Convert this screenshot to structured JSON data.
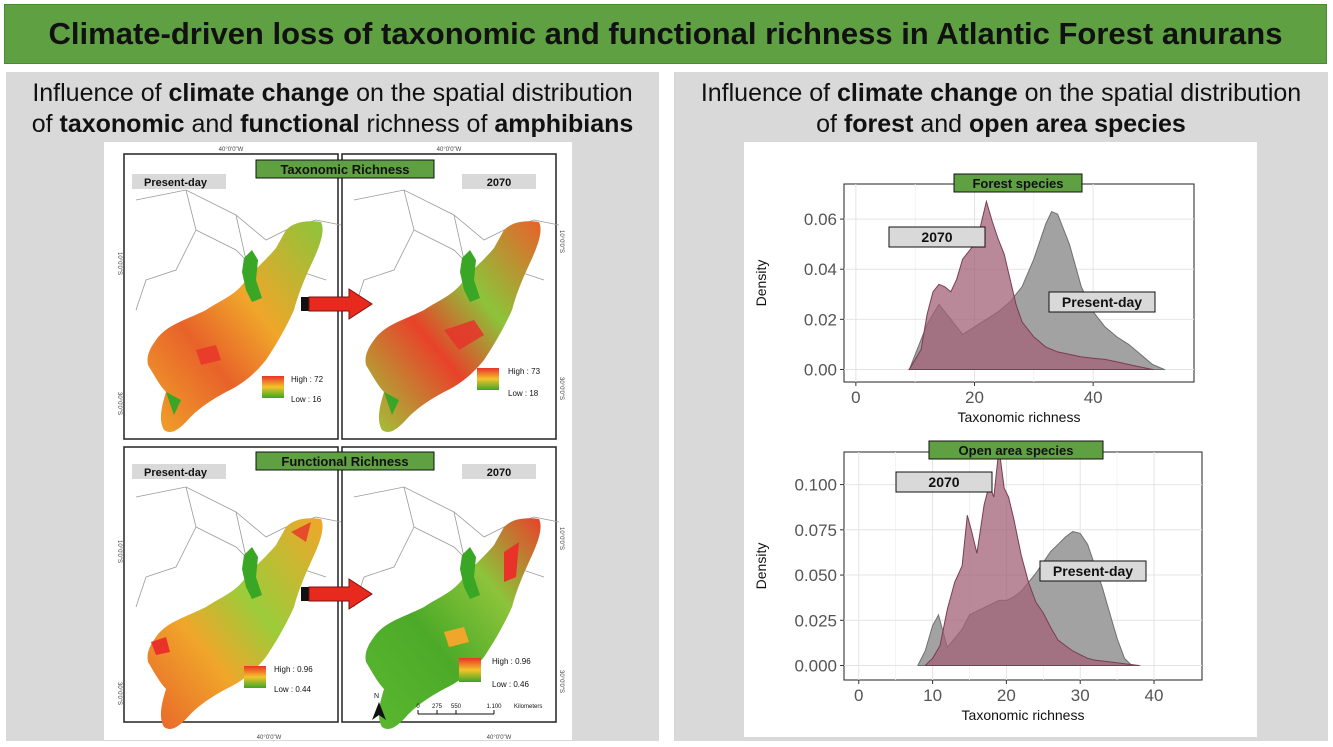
{
  "banner": {
    "title": "Climate-driven loss of taxonomic and functional richness in Atlantic Forest anurans"
  },
  "left_panel": {
    "title_line1": [
      "Influence of ",
      "climate change",
      " on the spatial distribution"
    ],
    "title_line2": [
      "of ",
      "taxonomic",
      " and ",
      "functional",
      " richness of ",
      "amphibians"
    ],
    "maps": {
      "coord_top": "40°0'0\"W",
      "coord_side_10": "10°0'0\"S",
      "coord_side_30": "30°0'0\"S",
      "taxonomic": {
        "label": "Taxonomic Richness",
        "present": {
          "tag": "Present-day",
          "high": "High : 72",
          "low": "Low : 16"
        },
        "future": {
          "tag": "2070",
          "high": "High : 73",
          "low": "Low : 18"
        }
      },
      "functional": {
        "label": "Functional Richness",
        "present": {
          "tag": "Present-day",
          "high": "High : 0.96",
          "low": "Low : 0.44"
        },
        "future": {
          "tag": "2070",
          "high": "High : 0.96",
          "low": "Low : 0.46"
        }
      },
      "north": "N",
      "scale": {
        "ticks": [
          "0",
          "275",
          "550",
          "1.100"
        ],
        "unit": "Kilometers"
      },
      "colors": {
        "high": "#e8322a",
        "mid": "#f0a62a",
        "low": "#3aa626",
        "border": "#9a9a9a"
      }
    }
  },
  "right_panel": {
    "title_line1": [
      "Influence of ",
      "climate change",
      " on the spatial distribution"
    ],
    "title_line2": [
      "of ",
      "forest",
      " and ",
      "open area species"
    ],
    "colors": {
      "present": "#9d9d9d",
      "future": "#a26077",
      "label_green": "#5fa043"
    },
    "chart_data": [
      {
        "type": "area",
        "title": "Forest species",
        "xlabel": "Taxonomic richness",
        "ylabel": "Density",
        "xlim": [
          -2,
          57
        ],
        "ylim": [
          -0.005,
          0.074
        ],
        "xticks": [
          0,
          20,
          40
        ],
        "yticks": [
          0.0,
          0.02,
          0.04,
          0.06
        ],
        "ytick_labels": [
          "0.00",
          "0.02",
          "0.04",
          "0.06"
        ],
        "grid": true,
        "series": [
          {
            "name": "Present-day",
            "x": [
              9,
              12,
              14,
              16,
              18,
              20,
              22,
              24,
              26,
              28,
              30,
              32,
              33,
              34,
              36,
              38,
              40,
              42,
              44,
              46,
              48,
              50,
              52
            ],
            "y": [
              0,
              0.018,
              0.026,
              0.02,
              0.014,
              0.017,
              0.02,
              0.023,
              0.027,
              0.033,
              0.044,
              0.058,
              0.063,
              0.062,
              0.05,
              0.033,
              0.023,
              0.017,
              0.013,
              0.01,
              0.006,
              0.002,
              0
            ]
          },
          {
            "name": "2070",
            "x": [
              9,
              11,
              12,
              13,
              14,
              15,
              16,
              17,
              18,
              19,
              20,
              21,
              22,
              23,
              24,
              25,
              26,
              27,
              28,
              30,
              32,
              34,
              36,
              38,
              40,
              42,
              44,
              46,
              48,
              50
            ],
            "y": [
              0,
              0.008,
              0.022,
              0.031,
              0.034,
              0.033,
              0.031,
              0.036,
              0.044,
              0.047,
              0.05,
              0.057,
              0.067,
              0.059,
              0.052,
              0.046,
              0.036,
              0.026,
              0.019,
              0.013,
              0.009,
              0.007,
              0.006,
              0.005,
              0.0045,
              0.004,
              0.003,
              0.002,
              0.001,
              0
            ]
          }
        ]
      },
      {
        "type": "area",
        "title": "Open area species",
        "xlabel": "Taxonomic richness",
        "ylabel": "Density",
        "xlim": [
          -2,
          46.5
        ],
        "ylim": [
          -0.008,
          0.118
        ],
        "xticks": [
          0,
          10,
          20,
          30,
          40
        ],
        "yticks": [
          0.0,
          0.025,
          0.05,
          0.075,
          0.1
        ],
        "ytick_labels": [
          "0.000",
          "0.025",
          "0.050",
          "0.075",
          "0.100"
        ],
        "grid": true,
        "series": [
          {
            "name": "Present-day",
            "x": [
              8,
              9,
              10,
              10.8,
              12,
              14,
              15,
              16,
              17,
              18,
              19,
              20,
              21,
              22,
              23,
              24,
              25,
              26,
              27,
              28,
              29,
              30,
              31,
              32,
              33,
              34,
              35,
              36,
              37
            ],
            "y": [
              0,
              0.008,
              0.022,
              0.028,
              0.01,
              0.02,
              0.028,
              0.03,
              0.032,
              0.034,
              0.036,
              0.036,
              0.038,
              0.041,
              0.046,
              0.051,
              0.057,
              0.063,
              0.067,
              0.071,
              0.074,
              0.073,
              0.067,
              0.055,
              0.043,
              0.029,
              0.015,
              0.004,
              0
            ]
          },
          {
            "name": "2070",
            "x": [
              9,
              10,
              11,
              12,
              13,
              14,
              14.7,
              15.3,
              16,
              17,
              17.7,
              18.3,
              19,
              19.7,
              20.3,
              21,
              22,
              23,
              24,
              25,
              26,
              27,
              28,
              29,
              30,
              31,
              32,
              34,
              36,
              37,
              38
            ],
            "y": [
              0,
              0.004,
              0.011,
              0.031,
              0.046,
              0.055,
              0.083,
              0.074,
              0.062,
              0.089,
              0.1,
              0.093,
              0.12,
              0.098,
              0.093,
              0.081,
              0.061,
              0.046,
              0.035,
              0.029,
              0.021,
              0.014,
              0.011,
              0.008,
              0.006,
              0.004,
              0.003,
              0.002,
              0.001,
              0.0005,
              0
            ]
          }
        ]
      }
    ]
  }
}
